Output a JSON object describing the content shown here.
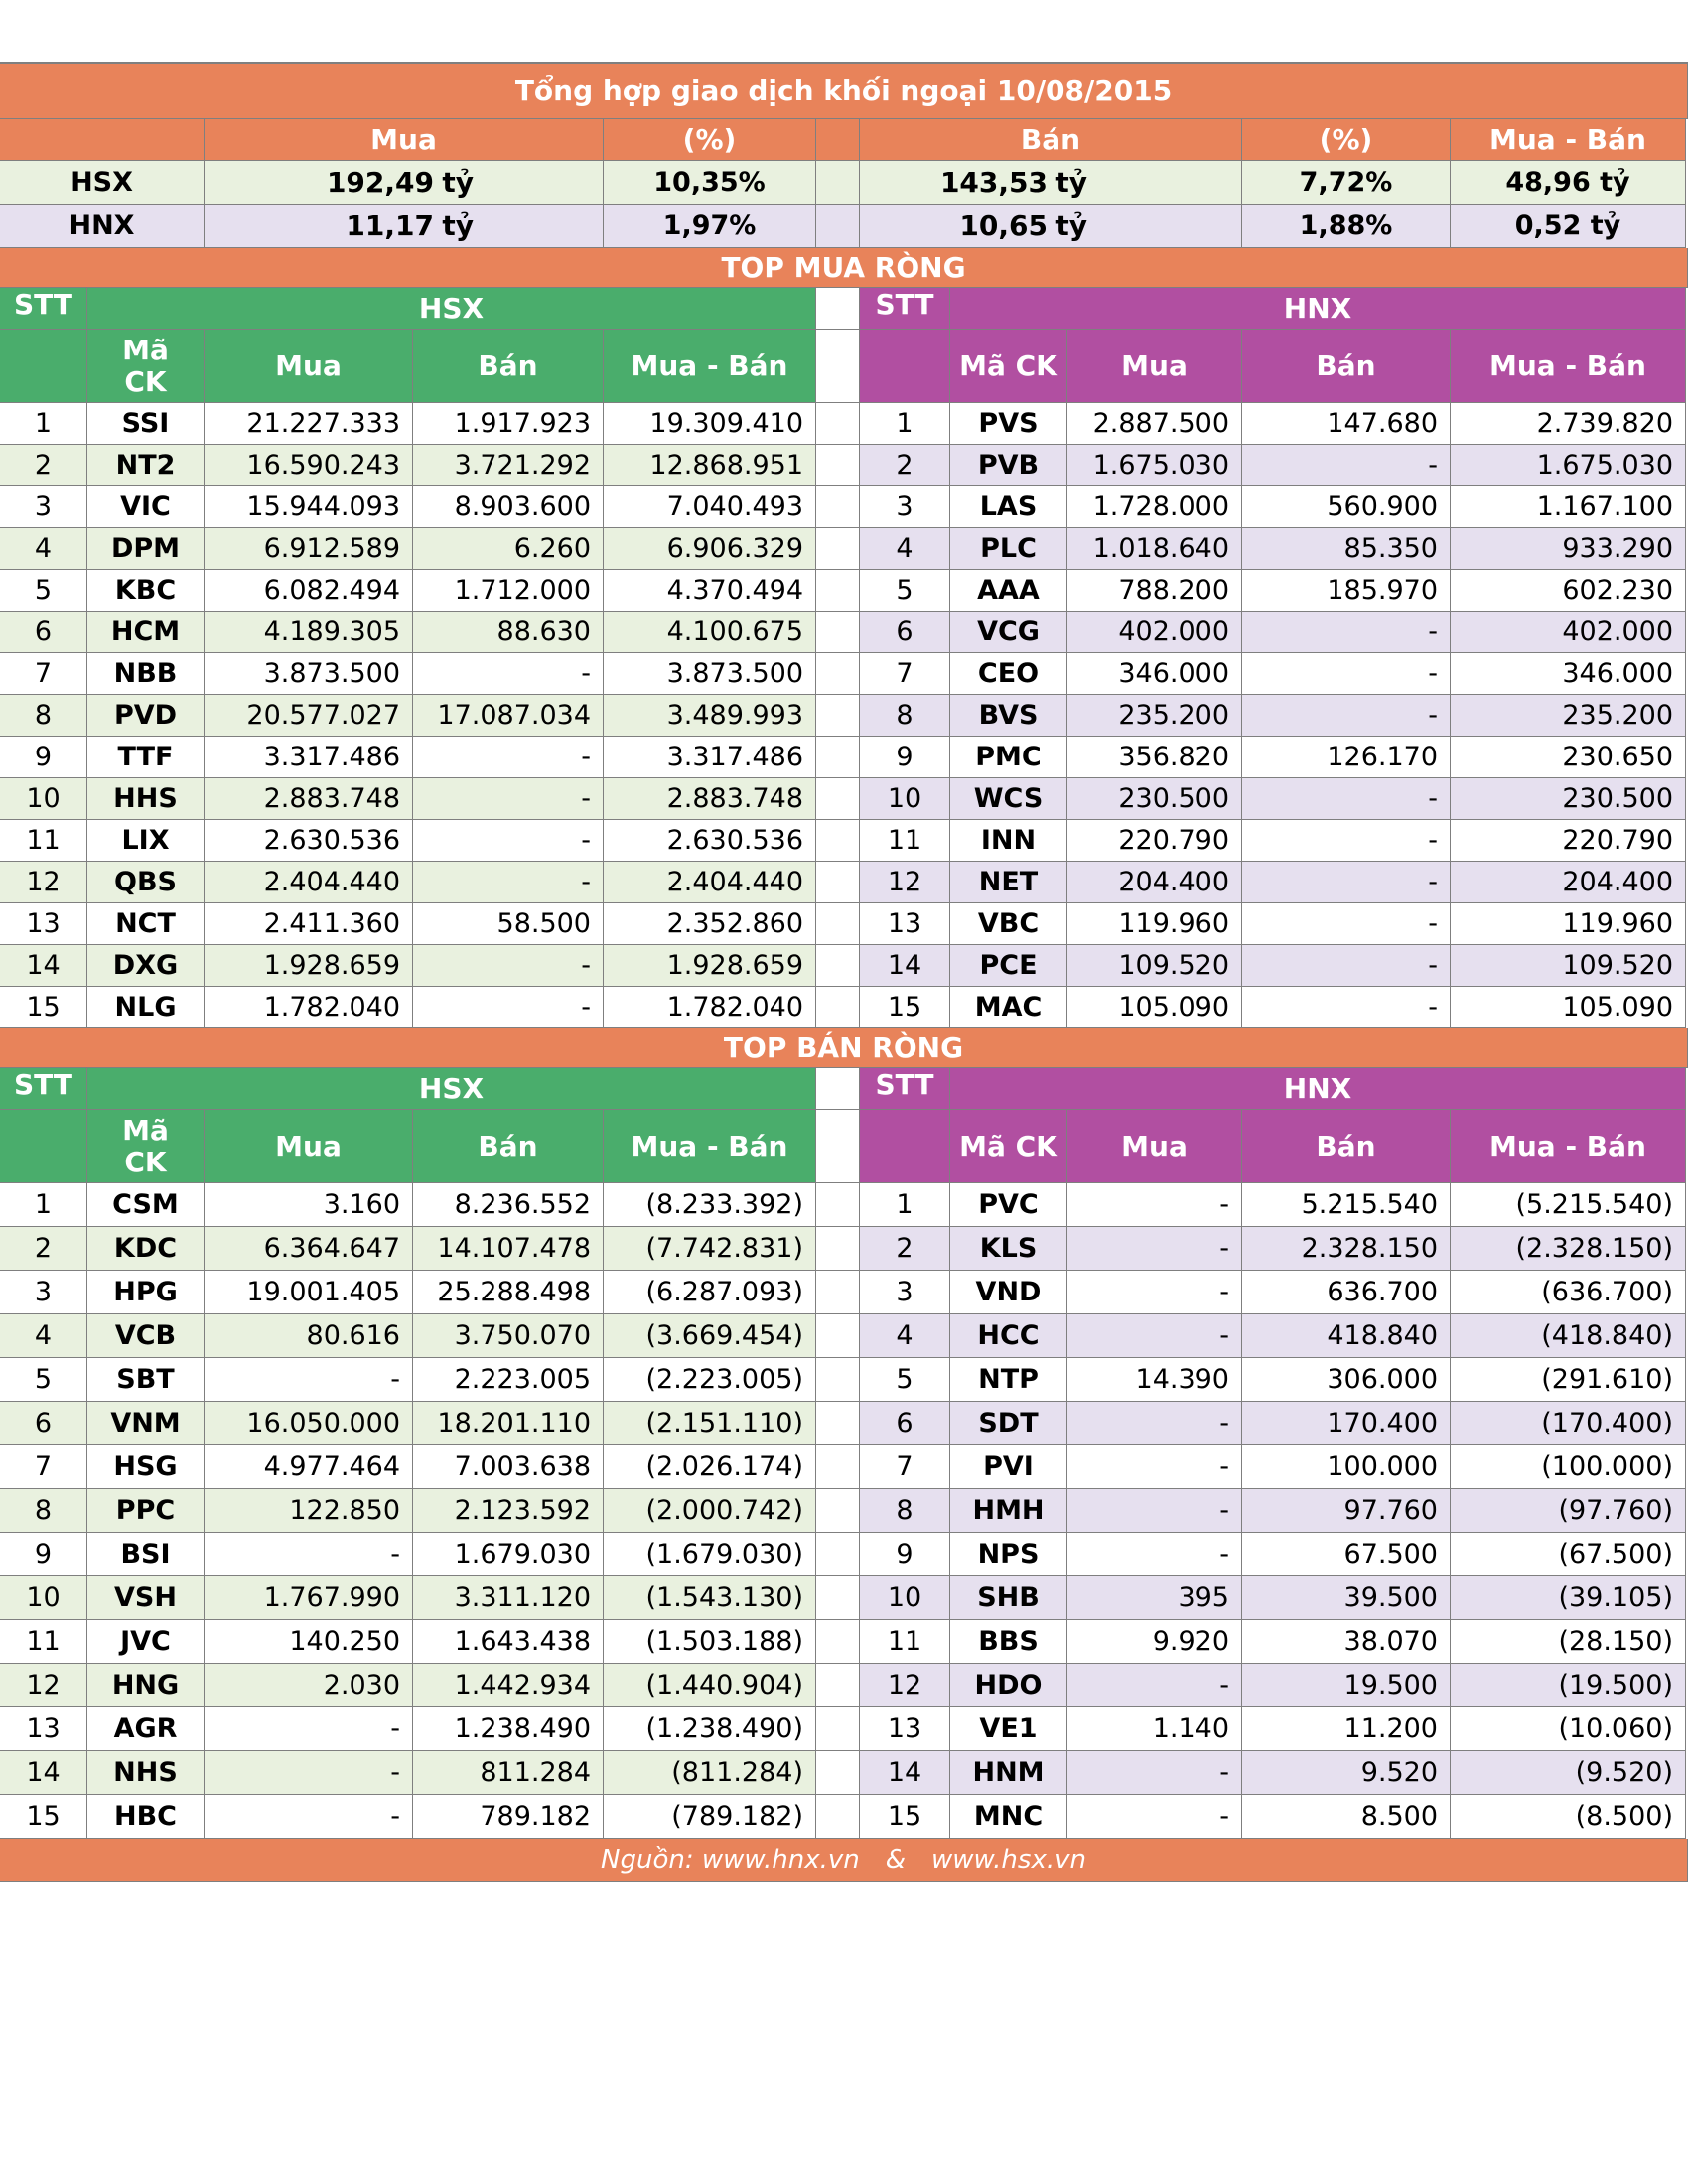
{
  "title": "Tổng hợp giao dịch khối ngoại 10/08/2015",
  "summary": {
    "headers": [
      "Mua",
      "(%)",
      "Bán",
      "(%)",
      "Mua - Bán"
    ],
    "unit": "tỷ",
    "rows": [
      {
        "exchange": "HSX",
        "buy": "192,49",
        "buy_pct": "10,35%",
        "sell": "143,53",
        "sell_pct": "7,72%",
        "net": "48,96 tỷ"
      },
      {
        "exchange": "HNX",
        "buy": "11,17",
        "buy_pct": "1,97%",
        "sell": "10,65",
        "sell_pct": "1,88%",
        "net": "0,52 tỷ"
      }
    ]
  },
  "top_buy": {
    "title": "TOP MUA RÒNG",
    "hsx": {
      "name": "HSX",
      "headers": [
        "STT",
        "Mã CK",
        "Mua",
        "Bán",
        "Mua - Bán"
      ],
      "rows": [
        [
          "1",
          "SSI",
          "21.227.333",
          "1.917.923",
          "19.309.410"
        ],
        [
          "2",
          "NT2",
          "16.590.243",
          "3.721.292",
          "12.868.951"
        ],
        [
          "3",
          "VIC",
          "15.944.093",
          "8.903.600",
          "7.040.493"
        ],
        [
          "4",
          "DPM",
          "6.912.589",
          "6.260",
          "6.906.329"
        ],
        [
          "5",
          "KBC",
          "6.082.494",
          "1.712.000",
          "4.370.494"
        ],
        [
          "6",
          "HCM",
          "4.189.305",
          "88.630",
          "4.100.675"
        ],
        [
          "7",
          "NBB",
          "3.873.500",
          "-",
          "3.873.500"
        ],
        [
          "8",
          "PVD",
          "20.577.027",
          "17.087.034",
          "3.489.993"
        ],
        [
          "9",
          "TTF",
          "3.317.486",
          "-",
          "3.317.486"
        ],
        [
          "10",
          "HHS",
          "2.883.748",
          "-",
          "2.883.748"
        ],
        [
          "11",
          "LIX",
          "2.630.536",
          "-",
          "2.630.536"
        ],
        [
          "12",
          "QBS",
          "2.404.440",
          "-",
          "2.404.440"
        ],
        [
          "13",
          "NCT",
          "2.411.360",
          "58.500",
          "2.352.860"
        ],
        [
          "14",
          "DXG",
          "1.928.659",
          "-",
          "1.928.659"
        ],
        [
          "15",
          "NLG",
          "1.782.040",
          "-",
          "1.782.040"
        ]
      ]
    },
    "hnx": {
      "name": "HNX",
      "headers": [
        "STT",
        "Mã CK",
        "Mua",
        "Bán",
        "Mua - Bán"
      ],
      "rows": [
        [
          "1",
          "PVS",
          "2.887.500",
          "147.680",
          "2.739.820"
        ],
        [
          "2",
          "PVB",
          "1.675.030",
          "-",
          "1.675.030"
        ],
        [
          "3",
          "LAS",
          "1.728.000",
          "560.900",
          "1.167.100"
        ],
        [
          "4",
          "PLC",
          "1.018.640",
          "85.350",
          "933.290"
        ],
        [
          "5",
          "AAA",
          "788.200",
          "185.970",
          "602.230"
        ],
        [
          "6",
          "VCG",
          "402.000",
          "-",
          "402.000"
        ],
        [
          "7",
          "CEO",
          "346.000",
          "-",
          "346.000"
        ],
        [
          "8",
          "BVS",
          "235.200",
          "-",
          "235.200"
        ],
        [
          "9",
          "PMC",
          "356.820",
          "126.170",
          "230.650"
        ],
        [
          "10",
          "WCS",
          "230.500",
          "-",
          "230.500"
        ],
        [
          "11",
          "INN",
          "220.790",
          "-",
          "220.790"
        ],
        [
          "12",
          "NET",
          "204.400",
          "-",
          "204.400"
        ],
        [
          "13",
          "VBC",
          "119.960",
          "-",
          "119.960"
        ],
        [
          "14",
          "PCE",
          "109.520",
          "-",
          "109.520"
        ],
        [
          "15",
          "MAC",
          "105.090",
          "-",
          "105.090"
        ]
      ]
    }
  },
  "top_sell": {
    "title": "TOP BÁN RÒNG",
    "hsx": {
      "name": "HSX",
      "headers": [
        "STT",
        "Mã CK",
        "Mua",
        "Bán",
        "Mua - Bán"
      ],
      "rows": [
        [
          "1",
          "CSM",
          "3.160",
          "8.236.552",
          "(8.233.392)"
        ],
        [
          "2",
          "KDC",
          "6.364.647",
          "14.107.478",
          "(7.742.831)"
        ],
        [
          "3",
          "HPG",
          "19.001.405",
          "25.288.498",
          "(6.287.093)"
        ],
        [
          "4",
          "VCB",
          "80.616",
          "3.750.070",
          "(3.669.454)"
        ],
        [
          "5",
          "SBT",
          "-",
          "2.223.005",
          "(2.223.005)"
        ],
        [
          "6",
          "VNM",
          "16.050.000",
          "18.201.110",
          "(2.151.110)"
        ],
        [
          "7",
          "HSG",
          "4.977.464",
          "7.003.638",
          "(2.026.174)"
        ],
        [
          "8",
          "PPC",
          "122.850",
          "2.123.592",
          "(2.000.742)"
        ],
        [
          "9",
          "BSI",
          "-",
          "1.679.030",
          "(1.679.030)"
        ],
        [
          "10",
          "VSH",
          "1.767.990",
          "3.311.120",
          "(1.543.130)"
        ],
        [
          "11",
          "JVC",
          "140.250",
          "1.643.438",
          "(1.503.188)"
        ],
        [
          "12",
          "HNG",
          "2.030",
          "1.442.934",
          "(1.440.904)"
        ],
        [
          "13",
          "AGR",
          "-",
          "1.238.490",
          "(1.238.490)"
        ],
        [
          "14",
          "NHS",
          "-",
          "811.284",
          "(811.284)"
        ],
        [
          "15",
          "HBC",
          "-",
          "789.182",
          "(789.182)"
        ]
      ]
    },
    "hnx": {
      "name": "HNX",
      "headers": [
        "STT",
        "Mã CK",
        "Mua",
        "Bán",
        "Mua - Bán"
      ],
      "rows": [
        [
          "1",
          "PVC",
          "-",
          "5.215.540",
          "(5.215.540)"
        ],
        [
          "2",
          "KLS",
          "-",
          "2.328.150",
          "(2.328.150)"
        ],
        [
          "3",
          "VND",
          "-",
          "636.700",
          "(636.700)"
        ],
        [
          "4",
          "HCC",
          "-",
          "418.840",
          "(418.840)"
        ],
        [
          "5",
          "NTP",
          "14.390",
          "306.000",
          "(291.610)"
        ],
        [
          "6",
          "SDT",
          "-",
          "170.400",
          "(170.400)"
        ],
        [
          "7",
          "PVI",
          "-",
          "100.000",
          "(100.000)"
        ],
        [
          "8",
          "HMH",
          "-",
          "97.760",
          "(97.760)"
        ],
        [
          "9",
          "NPS",
          "-",
          "67.500",
          "(67.500)"
        ],
        [
          "10",
          "SHB",
          "395",
          "39.500",
          "(39.105)"
        ],
        [
          "11",
          "BBS",
          "9.920",
          "38.070",
          "(28.150)"
        ],
        [
          "12",
          "HDO",
          "-",
          "19.500",
          "(19.500)"
        ],
        [
          "13",
          "VE1",
          "1.140",
          "11.200",
          "(10.060)"
        ],
        [
          "14",
          "HNM",
          "-",
          "9.520",
          "(9.520)"
        ],
        [
          "15",
          "MNC",
          "-",
          "8.500",
          "(8.500)"
        ]
      ]
    }
  },
  "footer": {
    "source_label": "Nguồn: www.hnx.vn",
    "separator": "&",
    "second_url": "www.hsx.vn"
  }
}
